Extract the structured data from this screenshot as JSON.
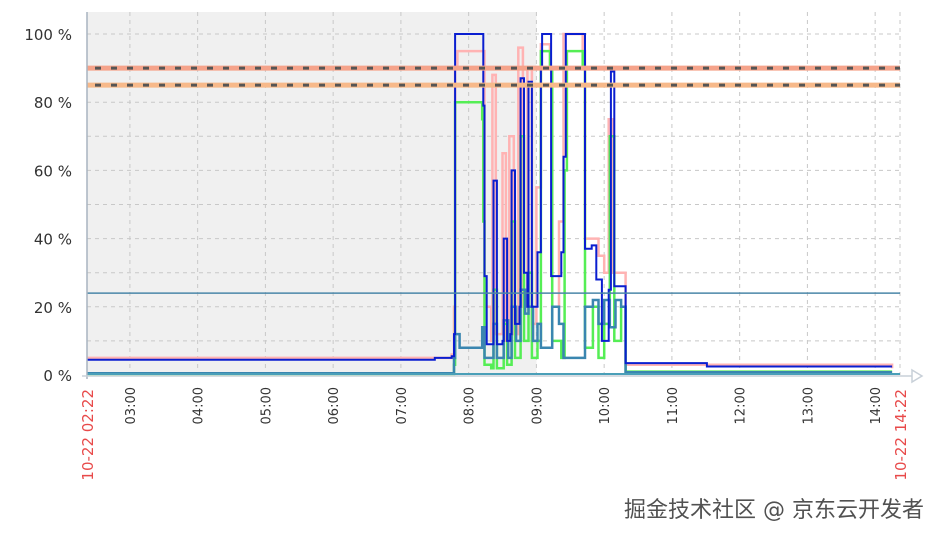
{
  "chart_data": {
    "type": "line",
    "x_range": [
      "10-22 02:22",
      "10-22 14:22"
    ],
    "x_start_label": "10-22 02:22",
    "x_end_label": "10-22 14:22",
    "x_ticks": [
      "03:00",
      "04:00",
      "05:00",
      "06:00",
      "07:00",
      "08:00",
      "09:00",
      "10:00",
      "11:00",
      "12:00",
      "13:00",
      "14:00"
    ],
    "y_ticks": [
      "0 %",
      "20 %",
      "40 %",
      "60 %",
      "80 %",
      "100 %"
    ],
    "ylim": [
      0,
      100
    ],
    "grid": true,
    "shaded_until": "09:00",
    "thresholds": [
      {
        "value": 90,
        "color": "#f5a38a"
      },
      {
        "value": 85,
        "color": "#f7b98a"
      }
    ],
    "reference_line": {
      "value": 24,
      "color": "#4a86a8"
    },
    "series": [
      {
        "color": "#ffb3b3",
        "points": [
          [
            "02:22",
            5
          ],
          [
            "07:45",
            6
          ],
          [
            "07:47",
            20
          ],
          [
            "07:48",
            90
          ],
          [
            "07:50",
            95
          ],
          [
            "08:12",
            95
          ],
          [
            "08:14",
            20
          ],
          [
            "08:20",
            10
          ],
          [
            "08:21",
            88
          ],
          [
            "08:24",
            12
          ],
          [
            "08:30",
            65
          ],
          [
            "08:33",
            10
          ],
          [
            "08:36",
            70
          ],
          [
            "08:40",
            12
          ],
          [
            "08:44",
            96
          ],
          [
            "08:48",
            20
          ],
          [
            "08:52",
            90
          ],
          [
            "08:56",
            15
          ],
          [
            "09:00",
            55
          ],
          [
            "09:04",
            97
          ],
          [
            "09:12",
            90
          ],
          [
            "09:14",
            20
          ],
          [
            "09:20",
            45
          ],
          [
            "09:24",
            100
          ],
          [
            "09:41",
            95
          ],
          [
            "09:43",
            40
          ],
          [
            "09:50",
            40
          ],
          [
            "09:55",
            35
          ],
          [
            "10:00",
            30
          ],
          [
            "10:04",
            75
          ],
          [
            "10:08",
            30
          ],
          [
            "10:15",
            30
          ],
          [
            "10:19",
            3
          ],
          [
            "14:15",
            2
          ]
        ]
      },
      {
        "color": "#55ee55",
        "points": [
          [
            "02:22",
            0.3
          ],
          [
            "07:47",
            3
          ],
          [
            "07:48",
            80
          ],
          [
            "08:12",
            75
          ],
          [
            "08:13",
            45
          ],
          [
            "08:14",
            3
          ],
          [
            "08:20",
            2
          ],
          [
            "08:22",
            25
          ],
          [
            "08:25",
            2
          ],
          [
            "08:31",
            15
          ],
          [
            "08:34",
            3
          ],
          [
            "08:38",
            45
          ],
          [
            "08:41",
            5
          ],
          [
            "08:46",
            70
          ],
          [
            "08:49",
            10
          ],
          [
            "08:53",
            30
          ],
          [
            "08:56",
            5
          ],
          [
            "09:01",
            10
          ],
          [
            "09:04",
            95
          ],
          [
            "09:12",
            90
          ],
          [
            "09:14",
            10
          ],
          [
            "09:22",
            5
          ],
          [
            "09:25",
            60
          ],
          [
            "09:27",
            95
          ],
          [
            "09:41",
            90
          ],
          [
            "09:43",
            8
          ],
          [
            "09:50",
            20
          ],
          [
            "09:55",
            5
          ],
          [
            "10:00",
            15
          ],
          [
            "10:05",
            70
          ],
          [
            "10:09",
            10
          ],
          [
            "10:15",
            20
          ],
          [
            "10:19",
            1
          ],
          [
            "14:15",
            1
          ]
        ]
      },
      {
        "color": "#3a86b0",
        "points": [
          [
            "02:22",
            0.5
          ],
          [
            "07:47",
            5
          ],
          [
            "07:48",
            12
          ],
          [
            "07:52",
            8
          ],
          [
            "08:10",
            8
          ],
          [
            "08:12",
            14
          ],
          [
            "08:14",
            5
          ],
          [
            "08:22",
            15
          ],
          [
            "08:25",
            5
          ],
          [
            "08:31",
            16
          ],
          [
            "08:35",
            5
          ],
          [
            "08:38",
            20
          ],
          [
            "08:42",
            10
          ],
          [
            "08:46",
            25
          ],
          [
            "08:50",
            18
          ],
          [
            "08:53",
            20
          ],
          [
            "08:57",
            10
          ],
          [
            "09:01",
            15
          ],
          [
            "09:04",
            8
          ],
          [
            "09:12",
            8
          ],
          [
            "09:14",
            20
          ],
          [
            "09:20",
            15
          ],
          [
            "09:24",
            5
          ],
          [
            "09:41",
            5
          ],
          [
            "09:43",
            20
          ],
          [
            "09:50",
            22
          ],
          [
            "09:55",
            15
          ],
          [
            "10:00",
            22
          ],
          [
            "10:05",
            14
          ],
          [
            "10:10",
            22
          ],
          [
            "10:15",
            20
          ],
          [
            "10:19",
            0.8
          ],
          [
            "14:15",
            0.8
          ]
        ]
      },
      {
        "color": "#0a1ed0",
        "points": [
          [
            "02:22",
            4.5
          ],
          [
            "07:30",
            5
          ],
          [
            "07:45",
            5.5
          ],
          [
            "07:47",
            12
          ],
          [
            "07:48",
            100
          ],
          [
            "08:12",
            100
          ],
          [
            "08:13",
            79
          ],
          [
            "08:14",
            29
          ],
          [
            "08:16",
            9
          ],
          [
            "08:21",
            9
          ],
          [
            "08:22",
            57
          ],
          [
            "08:25",
            9
          ],
          [
            "08:30",
            10
          ],
          [
            "08:31",
            40
          ],
          [
            "08:34",
            10
          ],
          [
            "08:37",
            12
          ],
          [
            "08:38",
            60
          ],
          [
            "08:41",
            15
          ],
          [
            "08:45",
            20
          ],
          [
            "08:46",
            87
          ],
          [
            "08:49",
            30
          ],
          [
            "08:52",
            20
          ],
          [
            "08:53",
            86
          ],
          [
            "08:56",
            20
          ],
          [
            "09:01",
            36
          ],
          [
            "09:04",
            90
          ],
          [
            "09:05",
            100
          ],
          [
            "09:12",
            100
          ],
          [
            "09:13",
            29
          ],
          [
            "09:22",
            36
          ],
          [
            "09:24",
            64
          ],
          [
            "09:26",
            100
          ],
          [
            "09:41",
            100
          ],
          [
            "09:43",
            37
          ],
          [
            "09:49",
            38
          ],
          [
            "09:53",
            28
          ],
          [
            "09:58",
            10
          ],
          [
            "10:04",
            25
          ],
          [
            "10:06",
            89
          ],
          [
            "10:09",
            26
          ],
          [
            "10:15",
            26
          ],
          [
            "10:19",
            3.5
          ],
          [
            "11:30",
            3.5
          ],
          [
            "11:31",
            2.5
          ],
          [
            "14:15",
            2.5
          ]
        ]
      }
    ]
  },
  "watermark": "掘金技术社区 @ 京东云开发者"
}
